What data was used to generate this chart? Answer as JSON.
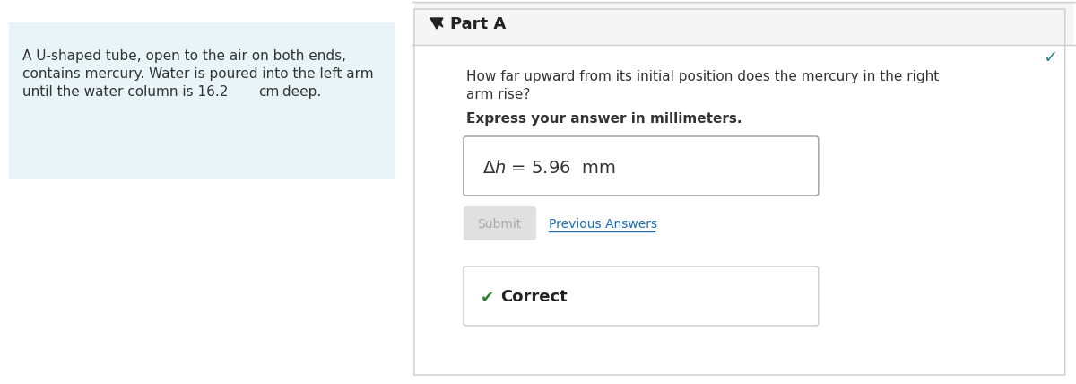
{
  "left_panel_bg": "#e8f4f8",
  "right_panel_bg": "#f5f5f5",
  "page_bg": "#ffffff",
  "left_text_line1": "A U-shaped tube, open to the air on both ends,",
  "left_text_line2": "contains mercury. Water is poured into the left arm",
  "left_text_line3": "until the water column is 16.2  cm deep.",
  "part_label": "Part A",
  "question_line1": "How far upward from its initial position does the mercury in the right",
  "question_line2": "arm rise?",
  "express_label": "Express your answer in millimeters.",
  "answer_formula": "Δh = 5.96  mm",
  "submit_text": "Submit",
  "prev_answers_text": "Previous Answers",
  "correct_text": "Correct",
  "divider_color": "#cccccc",
  "part_header_bg": "#eeeeee",
  "answer_box_border": "#aaaaaa",
  "correct_box_border": "#cccccc",
  "submit_bg": "#e0e0e0",
  "submit_text_color": "#aaaaaa",
  "prev_answers_color": "#1a6eb5",
  "correct_check_color": "#2e7d32",
  "teal_check_color": "#2e8b8b",
  "text_color": "#333333",
  "part_text_color": "#222222"
}
